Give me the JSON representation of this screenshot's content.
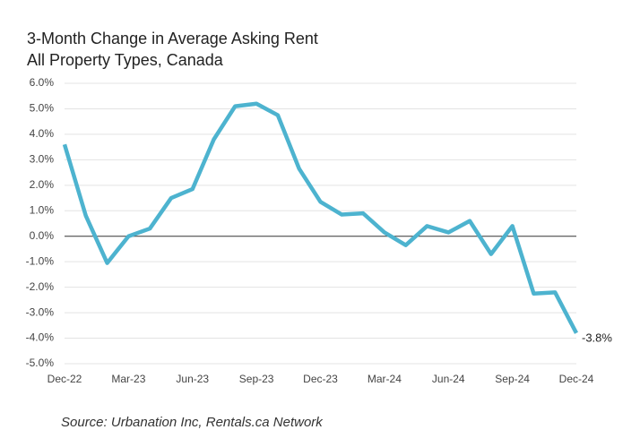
{
  "chart_data": {
    "type": "line",
    "title": "3-Month Change in Average Asking Rent",
    "subtitle": "All Property Types, Canada",
    "source": "Source: Urbanation Inc, Rentals.ca Network",
    "categories": [
      "Dec-22",
      null,
      null,
      "Mar-23",
      null,
      null,
      "Jun-23",
      null,
      null,
      "Sep-23",
      null,
      null,
      "Dec-23",
      null,
      null,
      "Mar-24",
      null,
      null,
      "Jun-24",
      null,
      null,
      "Sep-24",
      null,
      null,
      "Dec-24"
    ],
    "series": [
      {
        "color": "#4db3cf",
        "values": [
          3.6,
          0.8,
          -1.05,
          0.0,
          0.3,
          1.5,
          1.85,
          3.8,
          5.1,
          5.2,
          4.75,
          2.65,
          1.35,
          0.85,
          0.9,
          0.15,
          -0.35,
          0.4,
          0.15,
          0.6,
          -0.7,
          0.4,
          -2.25,
          -2.2,
          -3.8
        ],
        "value_labels": {
          "24": "-3.8%"
        }
      }
    ],
    "ylim": [
      -5,
      6
    ],
    "yticks": [
      {
        "value": -5,
        "label": "-5.0%"
      },
      {
        "value": -4,
        "label": "-4.0%"
      },
      {
        "value": -3,
        "label": "-3.0%"
      },
      {
        "value": -2,
        "label": "-2.0%"
      },
      {
        "value": -1,
        "label": "-1.0%"
      },
      {
        "value": 0,
        "label": "0.0%"
      },
      {
        "value": 1,
        "label": "1.0%"
      },
      {
        "value": 2,
        "label": "2.0%"
      },
      {
        "value": 3,
        "label": "3.0%"
      },
      {
        "value": 4,
        "label": "4.0%"
      },
      {
        "value": 5,
        "label": "5.0%"
      },
      {
        "value": 6,
        "label": "6.0%"
      }
    ],
    "grid": true
  }
}
